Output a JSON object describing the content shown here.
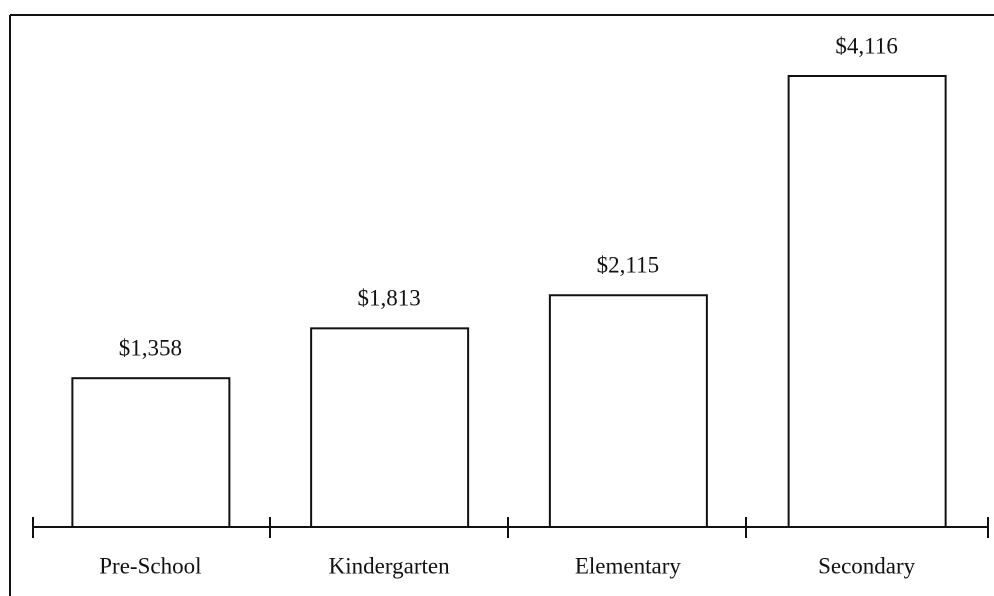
{
  "chart_data": {
    "type": "bar",
    "categories": [
      "Pre-School",
      "Kindergarten",
      "Elementary",
      "Secondary"
    ],
    "values": [
      1358,
      1813,
      2115,
      4116
    ],
    "value_labels": [
      "$1,358",
      "$1,813",
      "$2,115",
      "$4,116"
    ],
    "color": "#ffffff"
  }
}
